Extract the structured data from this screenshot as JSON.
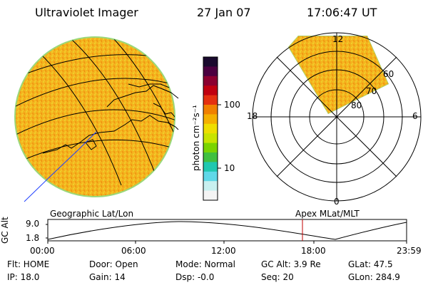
{
  "header": {
    "title": "Ultraviolet Imager",
    "date": "27 Jan 07",
    "time": "17:06:47 UT"
  },
  "colorbar": {
    "label": "photon cm⁻²s⁻¹",
    "ticks": [
      {
        "value": 100,
        "label": "100"
      },
      {
        "value": 10,
        "label": "10"
      }
    ],
    "colors": [
      "#1a0a2e",
      "#4b0040",
      "#8b0030",
      "#c00010",
      "#e43010",
      "#f08000",
      "#f4b000",
      "#eede00",
      "#c8e400",
      "#7ad400",
      "#40c040",
      "#20c8b0",
      "#60d8e8",
      "#c8f0f0",
      "#f4f4f4"
    ]
  },
  "geo_panel": {
    "label": "Geographic Lat/Lon",
    "fill_color": "#f4b21e"
  },
  "polar_panel": {
    "label": "Apex MLat/MLT",
    "mlt_labels": {
      "top": "12",
      "left": "18",
      "right": "6",
      "bottom": "0"
    },
    "mlat_labels": [
      "60",
      "70",
      "80"
    ]
  },
  "altitude_plot": {
    "ylabel": "GC Alt",
    "yticks": [
      "9.0",
      "1.8"
    ],
    "xticks": [
      "00:00",
      "06:00",
      "12:00",
      "18:00",
      "23:59"
    ],
    "marker_time": "17:06:47",
    "marker_color": "#c00000"
  },
  "info": {
    "flt": "Flt: HOME",
    "ip": "IP: 18.0",
    "door": "Door: Open",
    "gain": "Gain: 14",
    "mode": "Mode: Normal",
    "dsp": "Dsp:    -0.0",
    "gcalt": "GC Alt: 3.9 Re",
    "seq": "Seq: 20",
    "glat": "GLat:  47.5",
    "glon": "GLon: 284.9"
  }
}
